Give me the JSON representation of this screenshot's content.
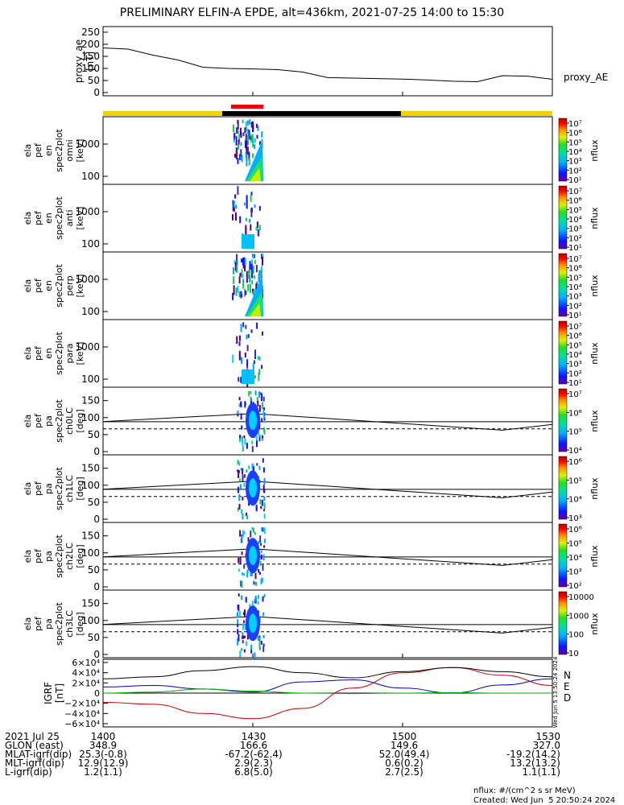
{
  "title": "PRELIMINARY ELFIN-A EPDE, alt=436km, 2021-07-25 14:00 to 15:30",
  "time_ticks": [
    "1400",
    "1430",
    "1500",
    "1530"
  ],
  "ae_panel": {
    "ylabel": [
      "proxy_ae",
      "[nT]"
    ],
    "yticks": [
      "250",
      "200",
      "150",
      "100",
      "50",
      "0"
    ],
    "series_label": "proxy_AE"
  },
  "energy_panels": [
    {
      "ylabel": [
        "ela",
        "pef",
        "en",
        "spec2plot",
        "omni",
        "[keV]"
      ],
      "yticks": [
        "1000",
        "100"
      ]
    },
    {
      "ylabel": [
        "ela",
        "pef",
        "en",
        "spec2plot",
        "anti",
        "[keV]"
      ],
      "yticks": [
        "1000",
        "100"
      ]
    },
    {
      "ylabel": [
        "ela",
        "pef",
        "en",
        "spec2plot",
        "perp",
        "[keV]"
      ],
      "yticks": [
        "1000",
        "100"
      ]
    },
    {
      "ylabel": [
        "ela",
        "pef",
        "en",
        "spec2plot",
        "para",
        "[keV]"
      ],
      "yticks": [
        "1000",
        "100"
      ]
    }
  ],
  "pitch_panels": [
    {
      "ylabel": [
        "ela",
        "pef",
        "pa",
        "spec2plot",
        "ch0LC",
        "[deg]"
      ],
      "yticks": [
        "150",
        "100",
        "50",
        "0"
      ]
    },
    {
      "ylabel": [
        "ela",
        "pef",
        "pa",
        "spec2plot",
        "ch1LC",
        "[deg]"
      ],
      "yticks": [
        "150",
        "100",
        "50",
        "0"
      ]
    },
    {
      "ylabel": [
        "ela",
        "pef",
        "pa",
        "spec2plot",
        "ch2LC",
        "[deg]"
      ],
      "yticks": [
        "150",
        "100",
        "50",
        "0"
      ]
    },
    {
      "ylabel": [
        "ela",
        "pef",
        "pa",
        "spec2plot",
        "ch3LC",
        "[deg]"
      ],
      "yticks": [
        "150",
        "100",
        "50",
        "0"
      ]
    }
  ],
  "colorbars": [
    {
      "label": "nflux",
      "ticks": [
        "10⁷",
        "10⁶",
        "10⁵",
        "10⁴",
        "10³",
        "10²",
        "10¹"
      ]
    },
    {
      "label": "nflux",
      "ticks": [
        "10⁷",
        "10⁶",
        "10⁵",
        "10⁴",
        "10³",
        "10²",
        "10¹"
      ]
    },
    {
      "label": "nflux",
      "ticks": [
        "10⁷",
        "10⁶",
        "10⁵",
        "10⁴",
        "10³",
        "10²",
        "10¹"
      ]
    },
    {
      "label": "nflux",
      "ticks": [
        "10⁷",
        "10⁶",
        "10⁵",
        "10⁴",
        "10³",
        "10²",
        "10¹"
      ]
    },
    {
      "label": "nflux",
      "ticks": [
        "10⁷",
        "10⁶",
        "10⁵",
        "10⁴"
      ]
    },
    {
      "label": "nflux",
      "ticks": [
        "10⁶",
        "10⁵",
        "10⁴",
        "10³"
      ]
    },
    {
      "label": "nflux",
      "ticks": [
        "10⁶",
        "10⁵",
        "10⁴",
        "10³",
        "10²"
      ]
    },
    {
      "label": "nflux",
      "ticks": [
        "10000",
        "1000",
        "100",
        "10"
      ]
    }
  ],
  "igrf_panel": {
    "ylabel": [
      "IGRF",
      "[nT]"
    ],
    "yticks": [
      "6×10⁴",
      "4×10⁴",
      "2×10⁴",
      "0",
      "−2×10⁴",
      "−4×10⁴",
      "−6×10⁴"
    ],
    "legend": [
      {
        "label": "N",
        "color": "#0000cc"
      },
      {
        "label": "E",
        "color": "#00aa00"
      },
      {
        "label": "D",
        "color": "#cc0000"
      }
    ],
    "side_note": "Wed Jun 5 13:50:24 2024"
  },
  "colors": {
    "day_bar": "#f5d000",
    "night_bar": "#000000",
    "science_bar": "#ee0000",
    "n_trace": "#0000cc",
    "e_trace": "#00aa00",
    "d_trace": "#cc0000"
  },
  "annotation_rows": [
    {
      "label": "2021 Jul 25",
      "values": [
        "1400",
        "1430",
        "1500",
        "1530"
      ]
    },
    {
      "label": "GLON (east)",
      "values": [
        "348.9",
        "166.6",
        "149.6",
        "327.0"
      ]
    },
    {
      "label": "MLAT-igrf(dip)",
      "values": [
        "25.3(-0.8)",
        "-67.2(-62.4)",
        "52.0(49.4)",
        "-19.2(14.2)"
      ]
    },
    {
      "label": "MLT-igrf(dip)",
      "values": [
        "12.9(12.9)",
        "2.9(2.3)",
        "0.6(0.2)",
        "13.2(13.2)"
      ]
    },
    {
      "label": "L-igrf(dip)",
      "values": [
        "1.2(1.1)",
        "6.8(5.0)",
        "2.7(2.5)",
        "1.1(1.1)"
      ]
    }
  ],
  "footer": {
    "units": "nflux: #/(cm^2 s sr MeV)",
    "created": "Created: Wed Jun  5 20:50:24 2024"
  },
  "chart_data": {
    "type": "line",
    "x_range": [
      "14:00",
      "15:30"
    ],
    "proxy_ae": {
      "x": [
        "14:00",
        "14:05",
        "14:10",
        "14:15",
        "14:20",
        "14:25",
        "14:30",
        "14:35",
        "14:40",
        "14:45",
        "14:50",
        "14:55",
        "15:00",
        "15:05",
        "15:10",
        "15:15",
        "15:20",
        "15:25",
        "15:30"
      ],
      "values": [
        185,
        180,
        155,
        135,
        105,
        100,
        98,
        95,
        85,
        62,
        60,
        58,
        56,
        52,
        47,
        45,
        70,
        68,
        55
      ],
      "ylim": [
        0,
        260
      ]
    },
    "pitch_angle_trace_ch0": {
      "x": [
        "14:00",
        "14:30",
        "15:20",
        "15:30"
      ],
      "values": [
        88,
        112,
        63,
        80
      ]
    },
    "pitch_angle_lines_ch0": {
      "solid": 88,
      "dashed": 67
    },
    "igrf": {
      "ylim": [
        -60000,
        60000
      ],
      "series": [
        {
          "name": "N",
          "x": [
            "14:00",
            "14:10",
            "14:20",
            "14:30",
            "14:40",
            "14:50",
            "15:00",
            "15:10",
            "15:20",
            "15:30"
          ],
          "values": [
            12000,
            15000,
            8000,
            2000,
            22000,
            26000,
            10000,
            0,
            16000,
            28000
          ]
        },
        {
          "name": "E",
          "x": [
            "14:00",
            "14:10",
            "14:20",
            "14:30",
            "14:40",
            "14:50",
            "15:00",
            "15:10",
            "15:20",
            "15:30"
          ],
          "values": [
            0,
            2000,
            8000,
            4000,
            0,
            -1000,
            0,
            1000,
            0,
            0
          ]
        },
        {
          "name": "D",
          "x": [
            "14:00",
            "14:10",
            "14:20",
            "14:30",
            "14:40",
            "14:50",
            "15:00",
            "15:10",
            "15:20",
            "15:30"
          ],
          "values": [
            -18000,
            -22000,
            -40000,
            -50000,
            -30000,
            10000,
            40000,
            50000,
            35000,
            15000
          ]
        },
        {
          "name": "total",
          "x": [
            "14:00",
            "14:10",
            "14:20",
            "14:30",
            "14:40",
            "14:50",
            "15:00",
            "15:10",
            "15:20",
            "15:30"
          ],
          "values": [
            28000,
            32000,
            44000,
            52000,
            40000,
            30000,
            42000,
            50000,
            42000,
            32000
          ]
        }
      ]
    }
  }
}
